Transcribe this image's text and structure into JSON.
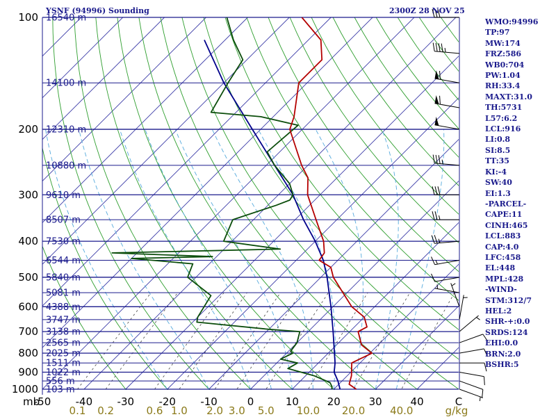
{
  "header": {
    "station": "YSNF (94996) Sounding",
    "time": "2300Z 28 NOV 25"
  },
  "indices": [
    "WMO:94996",
    "TP:97",
    "MW:174",
    "FRZ:586",
    "WB0:704",
    "PW:1.04",
    "RH:33.4",
    "MAXT:31.0",
    "TH:5731",
    "L57:6.2",
    "LCL:916",
    "LI:0.8",
    "SI:8.5",
    "TT:35",
    "KI:-4",
    "SW:40",
    "EI:1.3",
    "-PARCEL-",
    "CAPE:11",
    "CINH:465",
    "LCL:883",
    "CAP:4.0",
    "LFC:458",
    "EL:448",
    "MPL:428",
    "-WIND-",
    "STM:312/7",
    "HEL:2",
    "SHR-+:0.0",
    "SRDS:124",
    "EHI:0.0",
    "BRN:2.0",
    "BSHR:5"
  ],
  "colors": {
    "isobar": "#1a1a8c",
    "isotherm": "#3c3ca8",
    "dry_adiabat": "#2e9e2e",
    "moist_adiabat": "#55aadd",
    "mixing_ratio": "#444444",
    "temperature": "#b40000",
    "dewpoint": "#0b4d0b",
    "parcel": "#00008b",
    "mixing_label": "#8b7a1a",
    "wind_barb": "#000000"
  },
  "chart_data": {
    "type": "skew-t",
    "pressure_unit": "mb",
    "ylim": [
      1000,
      100
    ],
    "xlim": [
      -50,
      50
    ],
    "pressure_ticks": [
      {
        "p": 100,
        "label": "100"
      },
      {
        "p": 200,
        "label": "200"
      },
      {
        "p": 300,
        "label": "300"
      },
      {
        "p": 400,
        "label": "400"
      },
      {
        "p": 500,
        "label": "500"
      },
      {
        "p": 600,
        "label": "600"
      },
      {
        "p": 700,
        "label": "700"
      },
      {
        "p": 800,
        "label": "800"
      },
      {
        "p": 900,
        "label": "900"
      },
      {
        "p": 1000,
        "label": "1000"
      }
    ],
    "temperature_ticks": [
      {
        "t": -50,
        "label": "-50"
      },
      {
        "t": -40,
        "label": "-40"
      },
      {
        "t": -30,
        "label": "-30"
      },
      {
        "t": -20,
        "label": "-20"
      },
      {
        "t": -10,
        "label": "-10"
      },
      {
        "t": 0,
        "label": "0"
      },
      {
        "t": 10,
        "label": "10"
      },
      {
        "t": 20,
        "label": "20"
      },
      {
        "t": 30,
        "label": "30"
      },
      {
        "t": 40,
        "label": "40"
      },
      {
        "t": 50,
        "label": "C"
      }
    ],
    "mixing_ratio_ticks": [
      {
        "w": 0.1,
        "label": "0.1"
      },
      {
        "w": 0.2,
        "label": "0.2"
      },
      {
        "w": 0.6,
        "label": "0.6"
      },
      {
        "w": 1.0,
        "label": "1.0"
      },
      {
        "w": 2.0,
        "label": "2.0"
      },
      {
        "w": 3.0,
        "label": "3.0"
      },
      {
        "w": 5.0,
        "label": "5.0"
      },
      {
        "w": 10.0,
        "label": "10.0"
      },
      {
        "w": 20.0,
        "label": "20.0"
      },
      {
        "w": 40.0,
        "label": "40.0"
      },
      {
        "w": null,
        "label": "g/kg"
      }
    ],
    "height_labels": [
      {
        "p": 100,
        "label": "16540 m"
      },
      {
        "p": 150,
        "label": "14100 m"
      },
      {
        "p": 200,
        "label": "12310 m"
      },
      {
        "p": 250,
        "label": "10880 m"
      },
      {
        "p": 300,
        "label": "9610 m"
      },
      {
        "p": 350,
        "label": "8507 m"
      },
      {
        "p": 400,
        "label": "7530 m"
      },
      {
        "p": 450,
        "label": "6544 m"
      },
      {
        "p": 500,
        "label": "5840 m"
      },
      {
        "p": 550,
        "label": "5081 m"
      },
      {
        "p": 600,
        "label": "4388 m"
      },
      {
        "p": 650,
        "label": "3747 m"
      },
      {
        "p": 700,
        "label": "3138 m"
      },
      {
        "p": 750,
        "label": "2565 m"
      },
      {
        "p": 800,
        "label": "2025 m"
      },
      {
        "p": 850,
        "label": "1511 m"
      },
      {
        "p": 900,
        "label": "1022 m"
      },
      {
        "p": 950,
        "label": "556 m"
      },
      {
        "p": 1000,
        "label": "103 m"
      }
    ],
    "temperature": [
      {
        "p": 1000,
        "t": 25.4
      },
      {
        "p": 970,
        "t": 22.5
      },
      {
        "p": 920,
        "t": 21.0
      },
      {
        "p": 850,
        "t": 18.0
      },
      {
        "p": 800,
        "t": 20.5
      },
      {
        "p": 760,
        "t": 16.0
      },
      {
        "p": 700,
        "t": 12.0
      },
      {
        "p": 680,
        "t": 13.0
      },
      {
        "p": 640,
        "t": 10.0
      },
      {
        "p": 600,
        "t": 4.5
      },
      {
        "p": 550,
        "t": -1.0
      },
      {
        "p": 500,
        "t": -7.0
      },
      {
        "p": 470,
        "t": -10.0
      },
      {
        "p": 450,
        "t": -14.5
      },
      {
        "p": 430,
        "t": -15.0
      },
      {
        "p": 400,
        "t": -18.0
      },
      {
        "p": 350,
        "t": -25.0
      },
      {
        "p": 300,
        "t": -33.0
      },
      {
        "p": 270,
        "t": -37.0
      },
      {
        "p": 250,
        "t": -41.5
      },
      {
        "p": 200,
        "t": -53.0
      },
      {
        "p": 185,
        "t": -55.0
      },
      {
        "p": 150,
        "t": -62.0
      },
      {
        "p": 130,
        "t": -62.0
      },
      {
        "p": 115,
        "t": -67.0
      },
      {
        "p": 100,
        "t": -77.0
      }
    ],
    "dewpoint": [
      {
        "p": 1000,
        "t": 19.5
      },
      {
        "p": 985,
        "t": 19.0
      },
      {
        "p": 960,
        "t": 17.5
      },
      {
        "p": 920,
        "t": 12.0
      },
      {
        "p": 880,
        "t": 4.0
      },
      {
        "p": 850,
        "t": 5.0
      },
      {
        "p": 830,
        "t": 0.0
      },
      {
        "p": 800,
        "t": 1.5
      },
      {
        "p": 790,
        "t": 0.5
      },
      {
        "p": 750,
        "t": 0.0
      },
      {
        "p": 700,
        "t": -2.0
      },
      {
        "p": 690,
        "t": -10.0
      },
      {
        "p": 660,
        "t": -29.0
      },
      {
        "p": 640,
        "t": -30.0
      },
      {
        "p": 560,
        "t": -32.0
      },
      {
        "p": 500,
        "t": -42.0
      },
      {
        "p": 460,
        "t": -44.0
      },
      {
        "p": 445,
        "t": -60.0
      },
      {
        "p": 440,
        "t": -41.0
      },
      {
        "p": 430,
        "t": -66.0
      },
      {
        "p": 420,
        "t": -26.5
      },
      {
        "p": 400,
        "t": -42.0
      },
      {
        "p": 350,
        "t": -45.0
      },
      {
        "p": 320,
        "t": -38.0
      },
      {
        "p": 310,
        "t": -36.0
      },
      {
        "p": 300,
        "t": -36.5
      },
      {
        "p": 280,
        "t": -40.0
      },
      {
        "p": 250,
        "t": -48.0
      },
      {
        "p": 230,
        "t": -53.0
      },
      {
        "p": 195,
        "t": -52.0
      },
      {
        "p": 185,
        "t": -63.0
      },
      {
        "p": 180,
        "t": -76.0
      },
      {
        "p": 150,
        "t": -79.0
      },
      {
        "p": 130,
        "t": -81.0
      },
      {
        "p": 115,
        "t": -88.0
      },
      {
        "p": 100,
        "t": -95.0
      }
    ],
    "parcel": [
      {
        "p": 1000,
        "t": 21.5
      },
      {
        "p": 950,
        "t": 19.0
      },
      {
        "p": 900,
        "t": 16.0
      },
      {
        "p": 850,
        "t": 14.0
      },
      {
        "p": 800,
        "t": 11.5
      },
      {
        "p": 700,
        "t": 6.0
      },
      {
        "p": 600,
        "t": -0.5
      },
      {
        "p": 500,
        "t": -8.5
      },
      {
        "p": 450,
        "t": -13.5
      },
      {
        "p": 400,
        "t": -20.0
      },
      {
        "p": 350,
        "t": -28.0
      },
      {
        "p": 300,
        "t": -36.5
      },
      {
        "p": 250,
        "t": -48.0
      },
      {
        "p": 200,
        "t": -62.0
      },
      {
        "p": 150,
        "t": -80.0
      },
      {
        "p": 115,
        "t": -95.0
      }
    ],
    "winds": [
      {
        "p": 1000,
        "dir": 110,
        "spd": 5
      },
      {
        "p": 950,
        "dir": 110,
        "spd": 10
      },
      {
        "p": 900,
        "dir": 100,
        "spd": 10
      },
      {
        "p": 850,
        "dir": 90,
        "spd": 10
      },
      {
        "p": 800,
        "dir": 80,
        "spd": 10
      },
      {
        "p": 750,
        "dir": 70,
        "spd": 10
      },
      {
        "p": 700,
        "dir": 50,
        "spd": 5
      },
      {
        "p": 650,
        "dir": 10,
        "spd": 5
      },
      {
        "p": 600,
        "dir": 340,
        "spd": 5
      },
      {
        "p": 550,
        "dir": 280,
        "spd": 5
      },
      {
        "p": 500,
        "dir": 260,
        "spd": 10
      },
      {
        "p": 450,
        "dir": 260,
        "spd": 15
      },
      {
        "p": 400,
        "dir": 265,
        "spd": 25
      },
      {
        "p": 350,
        "dir": 270,
        "spd": 25
      },
      {
        "p": 300,
        "dir": 270,
        "spd": 30
      },
      {
        "p": 250,
        "dir": 275,
        "spd": 35
      },
      {
        "p": 200,
        "dir": 280,
        "spd": 50
      },
      {
        "p": 175,
        "dir": 280,
        "spd": 60
      },
      {
        "p": 150,
        "dir": 280,
        "spd": 60
      },
      {
        "p": 125,
        "dir": 275,
        "spd": 45
      },
      {
        "p": 100,
        "dir": 270,
        "spd": 30
      }
    ]
  }
}
